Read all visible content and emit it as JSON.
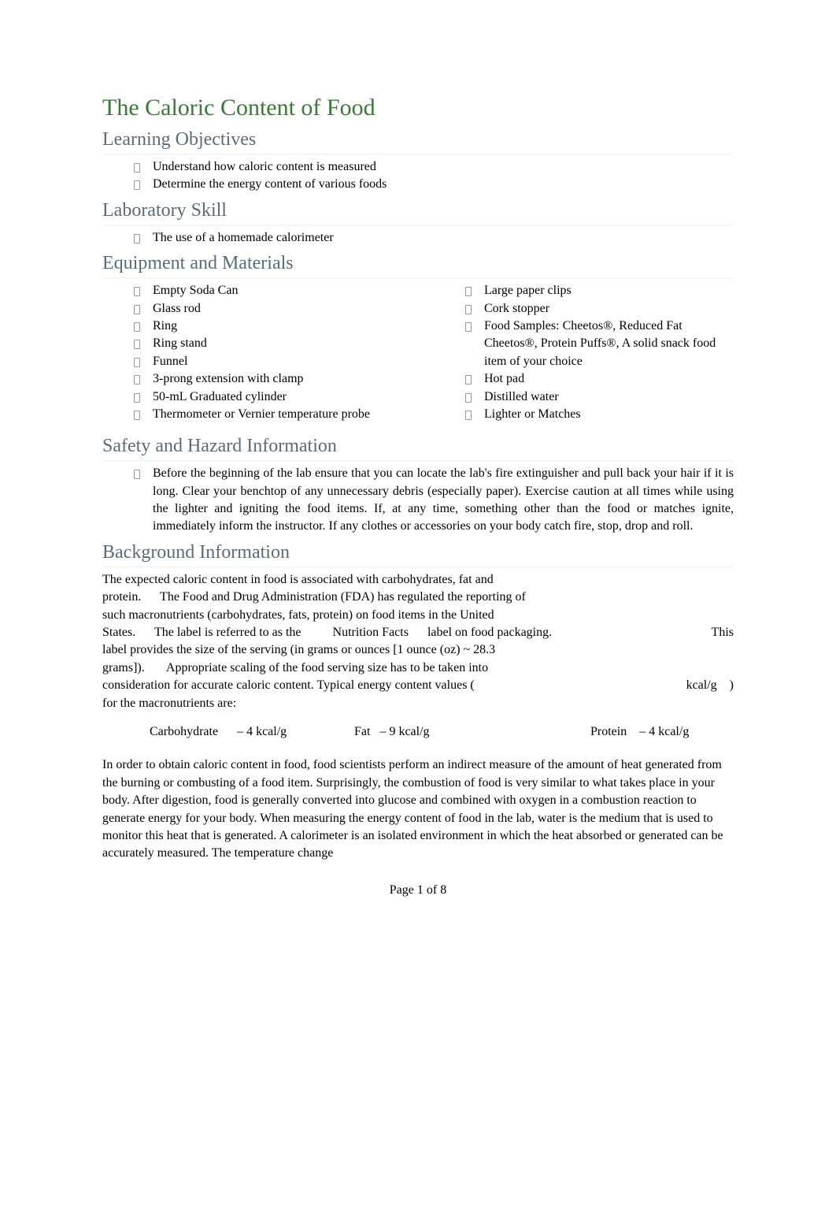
{
  "title": "The Caloric Content of Food",
  "colors": {
    "title": "#3d7a3a",
    "heading": "#5a6b7a",
    "body": "#000000",
    "background": "#ffffff",
    "bullet_border": "#999999",
    "shadow_rgba": "rgba(90,110,130,0.25)"
  },
  "typography": {
    "font_family": "Times New Roman",
    "title_fontsize": 30,
    "heading_fontsize": 24,
    "body_fontsize": 16,
    "line_height": 1.4
  },
  "sections": {
    "learning_objectives": {
      "heading": "Learning Objectives",
      "items": [
        "Understand how caloric content is measured",
        "Determine the energy content of various foods"
      ]
    },
    "laboratory_skill": {
      "heading": "Laboratory Skill",
      "items": [
        "The use of a homemade calorimeter"
      ]
    },
    "equipment_materials": {
      "heading": "Equipment and Materials",
      "left_items": [
        "Empty Soda Can",
        "Glass rod",
        "Ring",
        "Ring stand",
        "Funnel",
        "3-prong extension with clamp",
        "50-mL Graduated cylinder",
        "Thermometer or Vernier temperature probe"
      ],
      "right_items": [
        "Large paper clips",
        "Cork stopper",
        "Food Samples: Cheetos®, Reduced Fat Cheetos®, Protein Puffs®, A solid snack food item of your choice",
        "Hot pad",
        "Distilled water",
        "Lighter or Matches"
      ]
    },
    "safety": {
      "heading": "Safety and Hazard Information",
      "text": "Before the beginning of the lab ensure that you can locate the lab's fire extinguisher and pull back your hair if it is long. Clear your benchtop of any unnecessary debris (especially paper). Exercise caution at all times while using the lighter and igniting the food items. If, at any time, something other than the food or matches ignite, immediately inform the instructor. If any clothes or accessories on your body catch fire, stop, drop and roll."
    },
    "background": {
      "heading": "Background Information",
      "para1_line1": "The expected caloric content in food is associated with carbohydrates, fat and",
      "para1_line2a": "protein.",
      "para1_line2b": "The Food and Drug Administration (FDA) has regulated the reporting of",
      "para1_line3": "such macronutrients (carbohydrates, fats, protein) on food items in the United",
      "para1_line4a": "States.",
      "para1_line4b": "The label is referred to as the",
      "para1_line4c": "Nutrition Facts",
      "para1_line4d": "label on food packaging.",
      "para1_line4e": "This",
      "para1_line5": "label provides the size of the serving (in grams or ounces [1 ounce (oz) ~ 28.3",
      "para1_line6a": "grams]).",
      "para1_line6b": "Appropriate scaling of the food serving size has to be taken into",
      "para1_line7a": "consideration for accurate caloric content. Typical energy content values (",
      "para1_line7b": "kcal/g",
      "para1_line7c": ")",
      "para1_line8": "for the macronutrients are:",
      "macros": {
        "carb_label": "Carbohydrate",
        "carb_value": "– 4 kcal/g",
        "fat_label": "Fat",
        "fat_value": "– 9 kcal/g",
        "protein_label": "Protein",
        "protein_value": "– 4 kcal/g"
      },
      "para2": "In order to obtain caloric content in food, food scientists perform an indirect measure of the amount of heat generated from the burning or combusting of a food item. Surprisingly, the combustion of food is very similar to what takes place in your body. After digestion, food is generally converted into glucose and combined with oxygen in a combustion reaction to generate energy for your body. When measuring the energy content of food in the lab, water is the medium that is used to monitor this heat that is generated. A calorimeter is an isolated environment in which the heat absorbed or generated can be accurately measured. The temperature change"
    }
  },
  "page_label": "Page 1 of 8"
}
